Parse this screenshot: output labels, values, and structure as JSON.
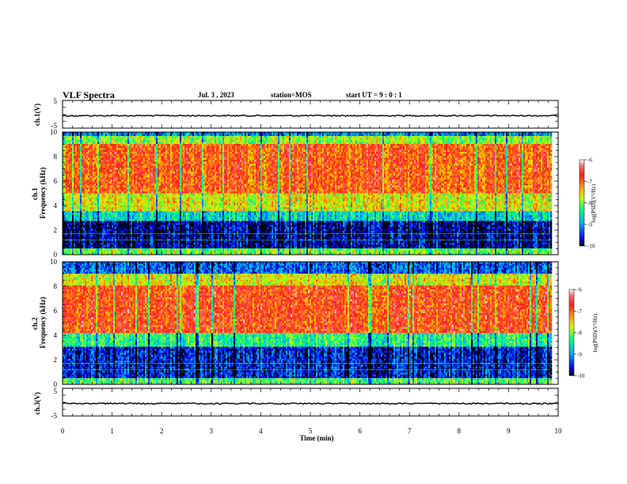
{
  "header": {
    "title": "VLF Spectra",
    "date": "Jul. 3 , 2023",
    "station": "station=MOS",
    "start": "start UT =  9 : 0 : 1"
  },
  "chart_data": [
    {
      "type": "line",
      "name": "ch1-waveform",
      "ylabel": "ch.1(V)",
      "ylim": [
        -5,
        5
      ],
      "yticks": [
        "5",
        "-5"
      ],
      "xlim": [
        0,
        10
      ],
      "trace_level": -0.5
    },
    {
      "type": "heatmap",
      "name": "ch1-spectrogram",
      "ylabel": "ch.1\nFrequency (kHz)",
      "ylim": [
        0,
        10
      ],
      "yticks": [
        "0",
        "2",
        "4",
        "6",
        "8",
        "10"
      ],
      "xlim": [
        0,
        9.85
      ],
      "colorbar": {
        "label": "log(PSD)(V²/Hz)",
        "range": [
          -10,
          -6
        ],
        "ticks": [
          "-6",
          "-7",
          "-8",
          "-9",
          "-10"
        ]
      },
      "bands": [
        {
          "f_low": 0.0,
          "f_high": 0.5,
          "level": -8.0
        },
        {
          "f_low": 0.5,
          "f_high": 2.8,
          "level": -9.7
        },
        {
          "f_low": 2.8,
          "f_high": 3.6,
          "level": -8.6
        },
        {
          "f_low": 3.6,
          "f_high": 5.0,
          "level": -7.6
        },
        {
          "f_low": 5.0,
          "f_high": 9.0,
          "level": -6.9
        },
        {
          "f_low": 9.0,
          "f_high": 9.6,
          "level": -7.9
        },
        {
          "f_low": 9.6,
          "f_high": 10.0,
          "level": -9.0
        }
      ]
    },
    {
      "type": "heatmap",
      "name": "ch2-spectrogram",
      "ylabel": "ch.2\nFrequency (kHz)",
      "ylim": [
        0,
        10
      ],
      "yticks": [
        "0",
        "2",
        "4",
        "6",
        "8",
        "10"
      ],
      "xlim": [
        0,
        9.85
      ],
      "colorbar": {
        "label": "log(PSD)(V²/Hz)",
        "range": [
          -10,
          -6
        ],
        "ticks": [
          "-6",
          "-7",
          "-8",
          "-9",
          "-10"
        ]
      },
      "bands": [
        {
          "f_low": 0.0,
          "f_high": 0.5,
          "level": -8.1
        },
        {
          "f_low": 0.5,
          "f_high": 3.0,
          "level": -9.5
        },
        {
          "f_low": 3.0,
          "f_high": 4.2,
          "level": -8.3
        },
        {
          "f_low": 4.2,
          "f_high": 8.0,
          "level": -6.8
        },
        {
          "f_low": 8.0,
          "f_high": 9.0,
          "level": -7.6
        },
        {
          "f_low": 9.0,
          "f_high": 10.0,
          "level": -9.2
        }
      ]
    },
    {
      "type": "line",
      "name": "ch3-waveform",
      "ylabel": "ch.3(V)",
      "ylim": [
        -5,
        5
      ],
      "yticks": [
        "5",
        "-5"
      ],
      "xlim": [
        0,
        10
      ],
      "trace_level": -0.5
    }
  ],
  "xaxis": {
    "label": "Time (min)",
    "ticks": [
      "0",
      "1",
      "2",
      "3",
      "4",
      "5",
      "6",
      "7",
      "8",
      "9",
      "10"
    ]
  }
}
